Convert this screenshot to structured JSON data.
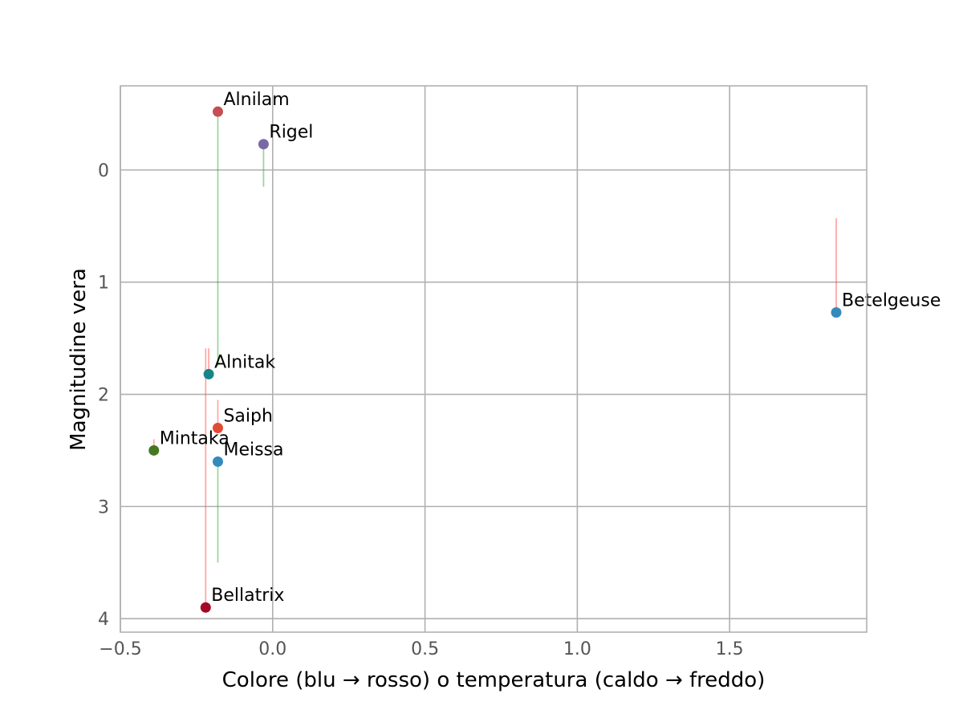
{
  "chart_data": {
    "type": "scatter",
    "title": "",
    "xlabel": "Colore (blu → rosso) o temperatura (caldo → freddo)",
    "ylabel": "Magnitudine vera",
    "xlim": [
      -0.5,
      1.95
    ],
    "ylim": [
      4.12,
      -0.75
    ],
    "y_inverted": true,
    "grid": true,
    "xticks": [
      -0.5,
      0.0,
      0.5,
      1.0,
      1.5
    ],
    "xtick_labels": [
      "−0.5",
      "0.0",
      "0.5",
      "1.0",
      "1.5"
    ],
    "yticks": [
      0,
      1,
      2,
      3,
      4
    ],
    "ytick_labels": [
      "0",
      "1",
      "2",
      "3",
      "4"
    ],
    "points": [
      {
        "name": "Alnilam",
        "x": -0.18,
        "y": -0.52,
        "color": "#c44e52",
        "err_to": 1.75,
        "err_color": "#2ca02c"
      },
      {
        "name": "Rigel",
        "x": -0.03,
        "y": -0.23,
        "color": "#7a68a6",
        "err_to": 0.15,
        "err_color": "#2ca02c"
      },
      {
        "name": "Betelgeuse",
        "x": 1.85,
        "y": 1.27,
        "color": "#348abd",
        "err_to": 0.43,
        "err_color": "#ff4040"
      },
      {
        "name": "Alnitak",
        "x": -0.21,
        "y": 1.82,
        "color": "#188487",
        "err_to": 1.59,
        "err_color": "#ff4040"
      },
      {
        "name": "Saiph",
        "x": -0.18,
        "y": 2.3,
        "color": "#e24a33",
        "err_to": 2.05,
        "err_color": "#ff4040"
      },
      {
        "name": "Mintaka",
        "x": -0.39,
        "y": 2.5,
        "color": "#467821",
        "err_to": 2.4,
        "err_color": "#ff4040"
      },
      {
        "name": "Meissa",
        "x": -0.18,
        "y": 2.6,
        "color": "#348abd",
        "err_to": 3.5,
        "err_color": "#2ca02c"
      },
      {
        "name": "Bellatrix",
        "x": -0.22,
        "y": 3.9,
        "color": "#a60628",
        "err_to": 1.59,
        "err_color": "#ff4040"
      }
    ]
  }
}
